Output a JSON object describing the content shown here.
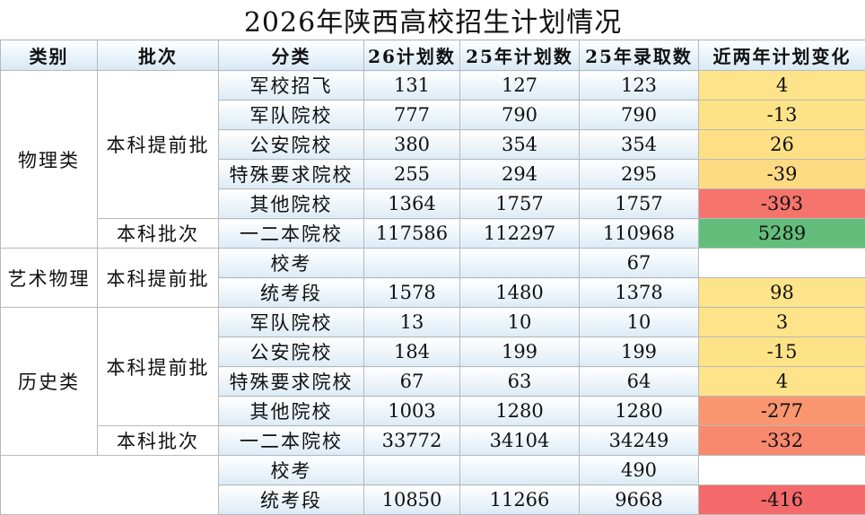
{
  "title": "2026年陕西高校招生计划情况",
  "headers": [
    "类别",
    "批次",
    "分类",
    "26计划数",
    "25年计划数",
    "25年录取数",
    "近两年计划变化"
  ],
  "groups": [
    {
      "category": "物理类",
      "batches": [
        {
          "batch": "本科提前批",
          "rows": [
            {
              "kind": "军校招飞",
              "plan26": 131,
              "plan25": 127,
              "admit25": 123,
              "change": 4,
              "color": "#fde38a"
            },
            {
              "kind": "军队院校",
              "plan26": 777,
              "plan25": 790,
              "admit25": 790,
              "change": -13,
              "color": "#fde388"
            },
            {
              "kind": "公安院校",
              "plan26": 380,
              "plan25": 354,
              "admit25": 354,
              "change": 26,
              "color": "#fde085"
            },
            {
              "kind": "特殊要求院校",
              "plan26": 255,
              "plan25": 294,
              "admit25": 295,
              "change": -39,
              "color": "#fedb83"
            },
            {
              "kind": "其他院校",
              "plan26": 1364,
              "plan25": 1757,
              "admit25": 1757,
              "change": -393,
              "color": "#f5746b"
            }
          ]
        },
        {
          "batch": "本科批次",
          "rows": [
            {
              "kind": "一二本院校",
              "plan26": 117586,
              "plan25": 112297,
              "admit25": 110968,
              "change": 5289,
              "color": "#63be7b"
            }
          ]
        }
      ]
    },
    {
      "category": "艺术物理",
      "batches": [
        {
          "batch": "本科提前批",
          "rows": [
            {
              "kind": "校考",
              "plan26": null,
              "plan25": null,
              "admit25": 67,
              "change": null,
              "color": "#ffffff"
            },
            {
              "kind": "统考段",
              "plan26": 1578,
              "plan25": 1480,
              "admit25": 1378,
              "change": 98,
              "color": "#fde38a"
            }
          ]
        }
      ]
    },
    {
      "category": "历史类",
      "batches": [
        {
          "batch": "本科提前批",
          "rows": [
            {
              "kind": "军队院校",
              "plan26": 13,
              "plan25": 10,
              "admit25": 10,
              "change": 3,
              "color": "#fde38a"
            },
            {
              "kind": "公安院校",
              "plan26": 184,
              "plan25": 199,
              "admit25": 199,
              "change": -15,
              "color": "#fde388"
            },
            {
              "kind": "特殊要求院校",
              "plan26": 67,
              "plan25": 63,
              "admit25": 64,
              "change": 4,
              "color": "#fde38a"
            },
            {
              "kind": "其他院校",
              "plan26": 1003,
              "plan25": 1280,
              "admit25": 1280,
              "change": -277,
              "color": "#f9966f"
            }
          ]
        },
        {
          "batch": "本科批次",
          "rows": [
            {
              "kind": "一二本院校",
              "plan26": 33772,
              "plan25": 34104,
              "admit25": 34249,
              "change": -332,
              "color": "#f8886e"
            }
          ]
        }
      ]
    },
    {
      "category": null,
      "batches": [
        {
          "batch": null,
          "rows": [
            {
              "kind": "校考",
              "plan26": null,
              "plan25": null,
              "admit25": 490,
              "change": null,
              "color": "#ffffff"
            },
            {
              "kind": "统考段",
              "plan26": 10850,
              "plan25": 11266,
              "admit25": 9668,
              "change": -416,
              "color": "#f46a6a"
            }
          ]
        }
      ]
    }
  ]
}
